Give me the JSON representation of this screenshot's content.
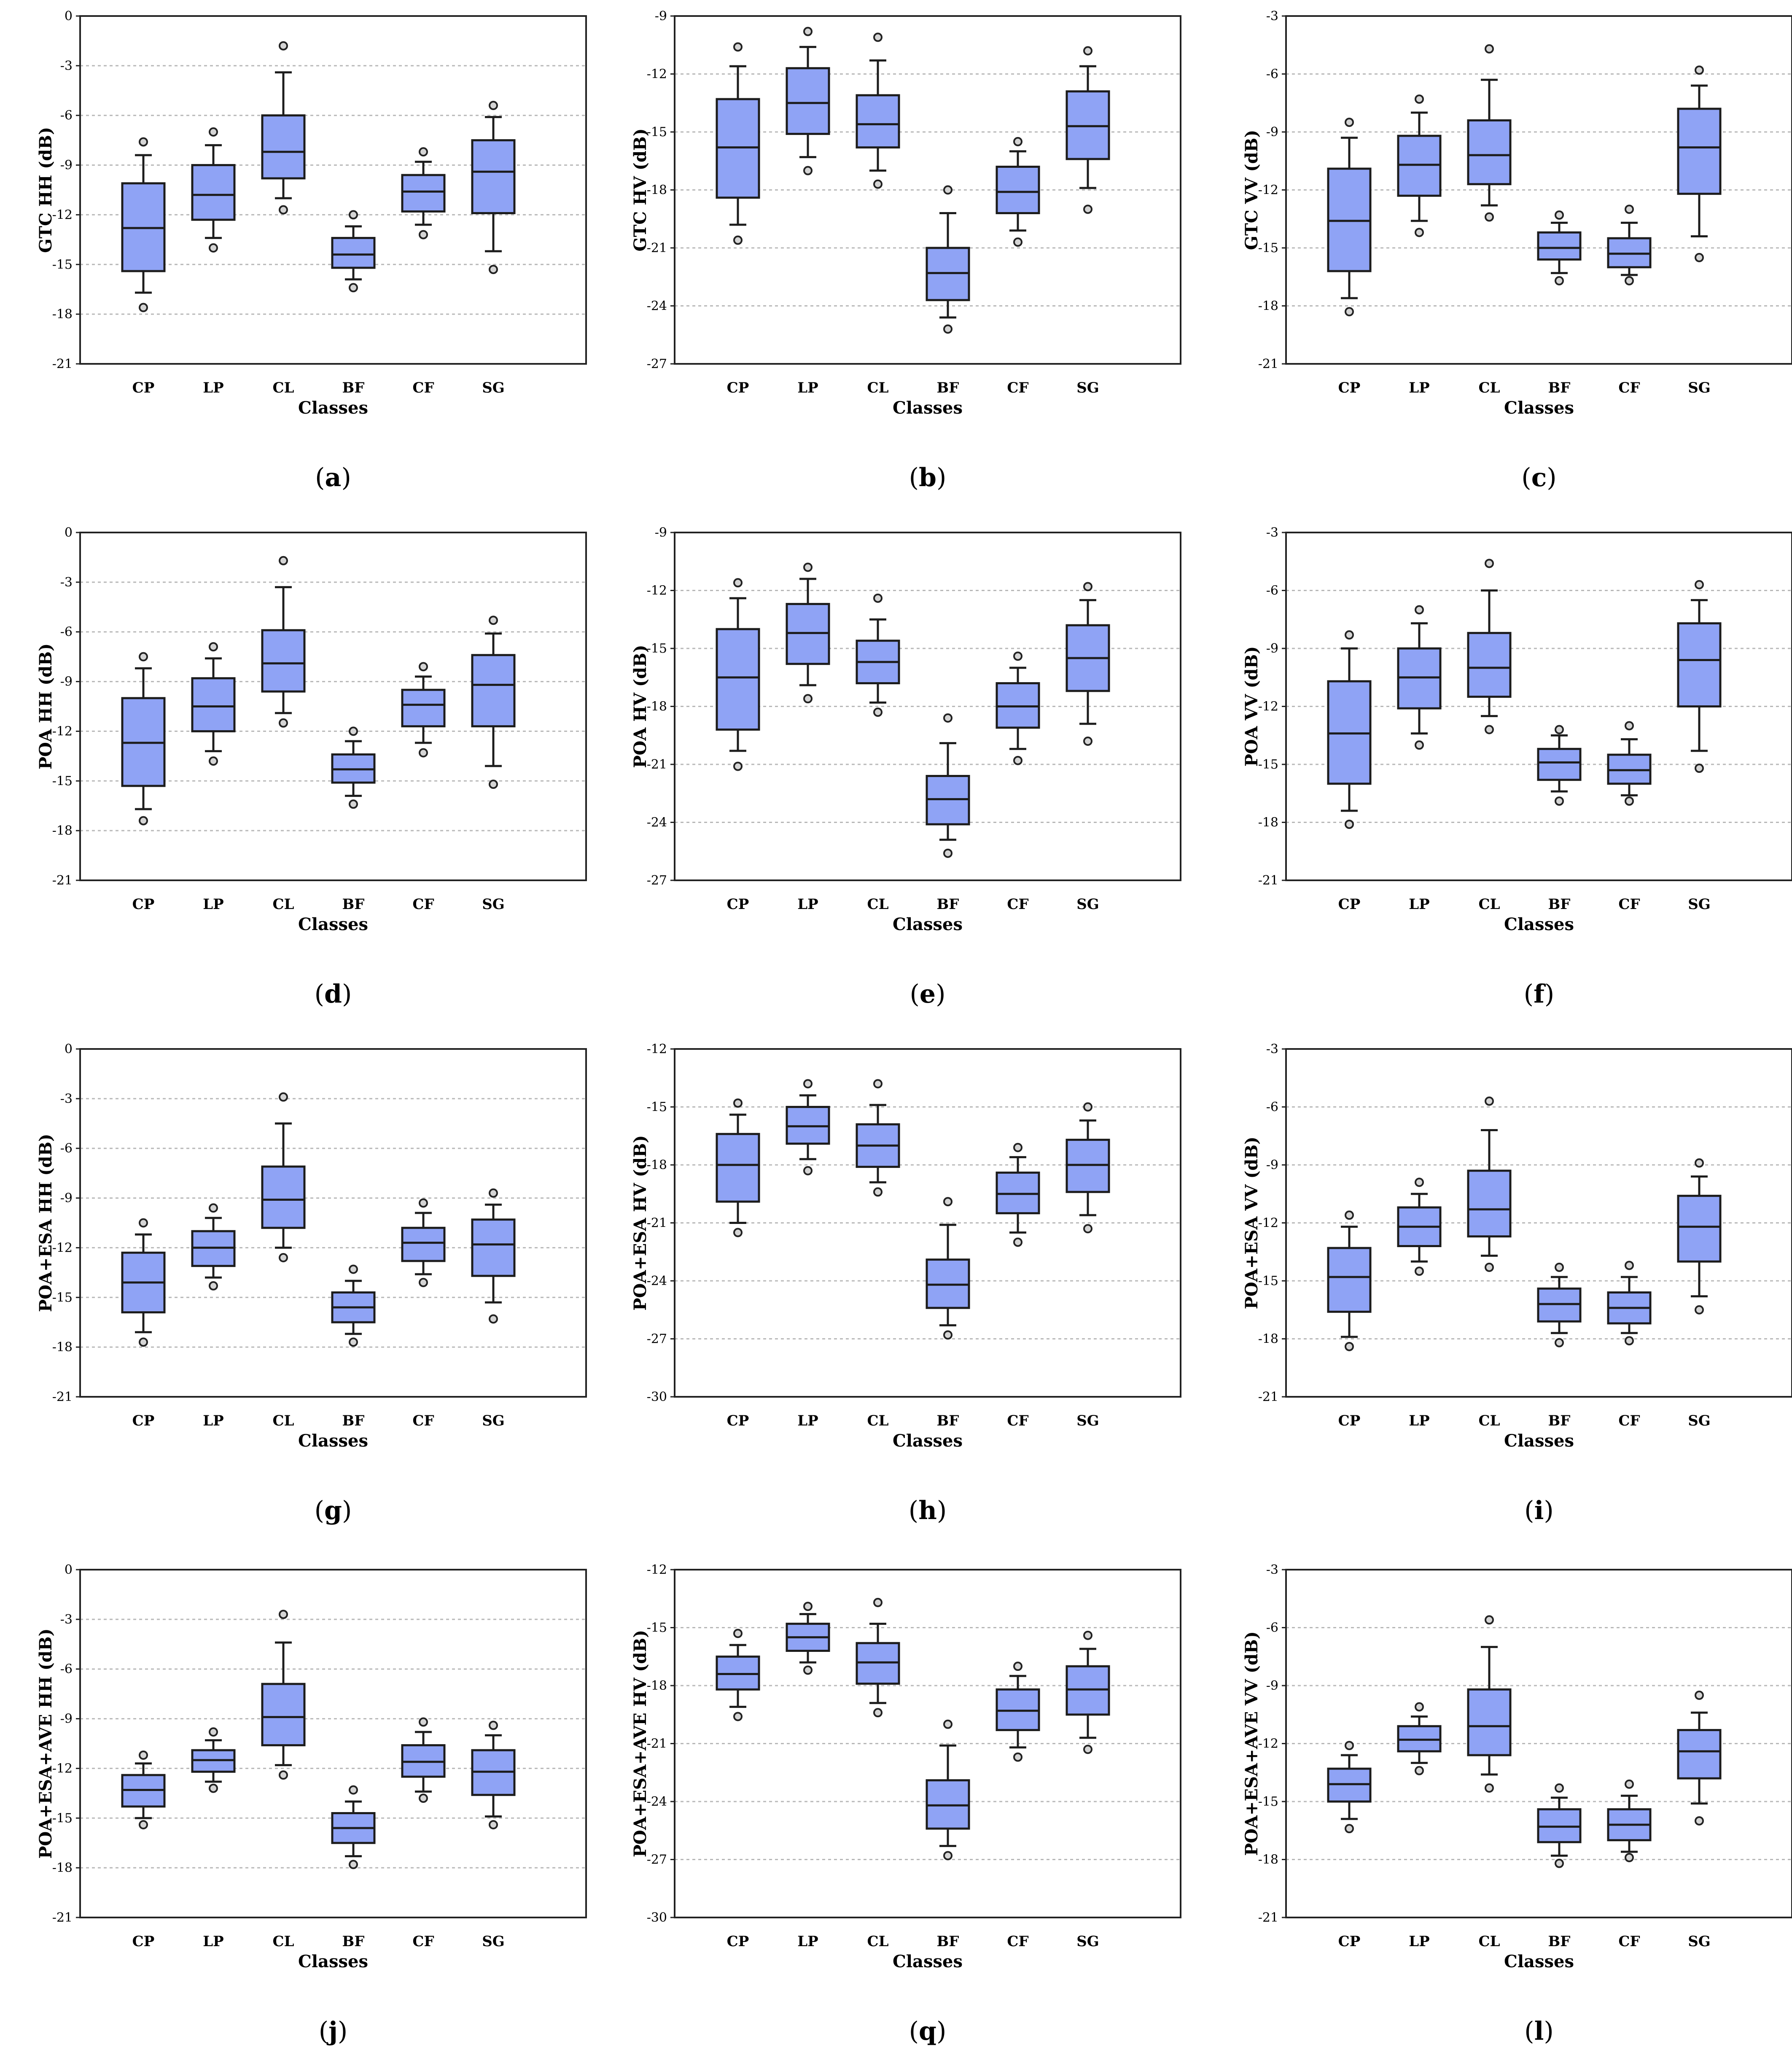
{
  "chart_data": [
    {
      "panel": "a",
      "type": "box",
      "ylabel": "GTC HH (dB)",
      "xlabel": "Classes",
      "ylim": [
        -21,
        0
      ],
      "yticks": [
        0,
        -3,
        -6,
        -9,
        -12,
        -15,
        -18,
        -21
      ],
      "categories": [
        "CP",
        "LP",
        "CL",
        "BF",
        "CF",
        "SG"
      ],
      "boxes": [
        {
          "lo_out": -17.6,
          "lo_wh": -16.7,
          "q1": -15.4,
          "med": -12.8,
          "q3": -10.1,
          "hi_wh": -8.4,
          "hi_out": -7.6
        },
        {
          "lo_out": -14.0,
          "lo_wh": -13.4,
          "q1": -12.3,
          "med": -10.8,
          "q3": -9.0,
          "hi_wh": -7.8,
          "hi_out": -7.0
        },
        {
          "lo_out": -11.7,
          "lo_wh": -11.0,
          "q1": -9.8,
          "med": -8.2,
          "q3": -6.0,
          "hi_wh": -3.4,
          "hi_out": -1.8
        },
        {
          "lo_out": -16.4,
          "lo_wh": -15.9,
          "q1": -15.2,
          "med": -14.4,
          "q3": -13.4,
          "hi_wh": -12.7,
          "hi_out": -12.0
        },
        {
          "lo_out": -13.2,
          "lo_wh": -12.6,
          "q1": -11.8,
          "med": -10.6,
          "q3": -9.6,
          "hi_wh": -8.8,
          "hi_out": -8.2
        },
        {
          "lo_out": -15.3,
          "lo_wh": -14.2,
          "q1": -11.9,
          "med": -9.4,
          "q3": -7.5,
          "hi_wh": -6.1,
          "hi_out": -5.4
        }
      ]
    },
    {
      "panel": "b",
      "type": "box",
      "ylabel": "GTC HV (dB)",
      "xlabel": "Classes",
      "ylim": [
        -27,
        -9
      ],
      "yticks": [
        -9,
        -12,
        -15,
        -18,
        -21,
        -24,
        -27
      ],
      "categories": [
        "CP",
        "LP",
        "CL",
        "BF",
        "CF",
        "SG"
      ],
      "boxes": [
        {
          "lo_out": -20.6,
          "lo_wh": -19.8,
          "q1": -18.4,
          "med": -15.8,
          "q3": -13.3,
          "hi_wh": -11.6,
          "hi_out": -10.6
        },
        {
          "lo_out": -17.0,
          "lo_wh": -16.3,
          "q1": -15.1,
          "med": -13.5,
          "q3": -11.7,
          "hi_wh": -10.6,
          "hi_out": -9.8
        },
        {
          "lo_out": -17.7,
          "lo_wh": -17.0,
          "q1": -15.8,
          "med": -14.6,
          "q3": -13.1,
          "hi_wh": -11.3,
          "hi_out": -10.1
        },
        {
          "lo_out": -25.2,
          "lo_wh": -24.6,
          "q1": -23.7,
          "med": -22.3,
          "q3": -21.0,
          "hi_wh": -19.2,
          "hi_out": -18.0
        },
        {
          "lo_out": -20.7,
          "lo_wh": -20.1,
          "q1": -19.2,
          "med": -18.1,
          "q3": -16.8,
          "hi_wh": -16.0,
          "hi_out": -15.5
        },
        {
          "lo_out": -19.0,
          "lo_wh": -17.9,
          "q1": -16.4,
          "med": -14.7,
          "q3": -12.9,
          "hi_wh": -11.6,
          "hi_out": -10.8
        }
      ]
    },
    {
      "panel": "c",
      "type": "box",
      "ylabel": "GTC VV (dB)",
      "xlabel": "Classes",
      "ylim": [
        -21,
        -3
      ],
      "yticks": [
        -3,
        -6,
        -9,
        -12,
        -15,
        -18,
        -21
      ],
      "categories": [
        "CP",
        "LP",
        "CL",
        "BF",
        "CF",
        "SG"
      ],
      "boxes": [
        {
          "lo_out": -18.3,
          "lo_wh": -17.6,
          "q1": -16.2,
          "med": -13.6,
          "q3": -10.9,
          "hi_wh": -9.3,
          "hi_out": -8.5
        },
        {
          "lo_out": -14.2,
          "lo_wh": -13.6,
          "q1": -12.3,
          "med": -10.7,
          "q3": -9.2,
          "hi_wh": -8.0,
          "hi_out": -7.3
        },
        {
          "lo_out": -13.4,
          "lo_wh": -12.8,
          "q1": -11.7,
          "med": -10.2,
          "q3": -8.4,
          "hi_wh": -6.3,
          "hi_out": -4.7
        },
        {
          "lo_out": -16.7,
          "lo_wh": -16.3,
          "q1": -15.6,
          "med": -15.0,
          "q3": -14.2,
          "hi_wh": -13.7,
          "hi_out": -13.3
        },
        {
          "lo_out": -16.7,
          "lo_wh": -16.4,
          "q1": -16.0,
          "med": -15.3,
          "q3": -14.5,
          "hi_wh": -13.7,
          "hi_out": -13.0
        },
        {
          "lo_out": -15.5,
          "lo_wh": -14.4,
          "q1": -12.2,
          "med": -9.8,
          "q3": -7.8,
          "hi_wh": -6.6,
          "hi_out": -5.8
        }
      ]
    },
    {
      "panel": "d",
      "type": "box",
      "ylabel": "POA HH (dB)",
      "xlabel": "Classes",
      "ylim": [
        -21,
        0
      ],
      "yticks": [
        0,
        -3,
        -6,
        -9,
        -12,
        -15,
        -18,
        -21
      ],
      "categories": [
        "CP",
        "LP",
        "CL",
        "BF",
        "CF",
        "SG"
      ],
      "boxes": [
        {
          "lo_out": -17.4,
          "lo_wh": -16.7,
          "q1": -15.3,
          "med": -12.7,
          "q3": -10.0,
          "hi_wh": -8.2,
          "hi_out": -7.5
        },
        {
          "lo_out": -13.8,
          "lo_wh": -13.2,
          "q1": -12.0,
          "med": -10.5,
          "q3": -8.8,
          "hi_wh": -7.6,
          "hi_out": -6.9
        },
        {
          "lo_out": -11.5,
          "lo_wh": -10.9,
          "q1": -9.6,
          "med": -7.9,
          "q3": -5.9,
          "hi_wh": -3.3,
          "hi_out": -1.7
        },
        {
          "lo_out": -16.4,
          "lo_wh": -15.9,
          "q1": -15.1,
          "med": -14.3,
          "q3": -13.4,
          "hi_wh": -12.6,
          "hi_out": -12.0
        },
        {
          "lo_out": -13.3,
          "lo_wh": -12.7,
          "q1": -11.7,
          "med": -10.4,
          "q3": -9.5,
          "hi_wh": -8.7,
          "hi_out": -8.1
        },
        {
          "lo_out": -15.2,
          "lo_wh": -14.1,
          "q1": -11.7,
          "med": -9.2,
          "q3": -7.4,
          "hi_wh": -6.1,
          "hi_out": -5.3
        }
      ]
    },
    {
      "panel": "e",
      "type": "box",
      "ylabel": "POA HV (dB)",
      "xlabel": "Classes",
      "ylim": [
        -27,
        -9
      ],
      "yticks": [
        -9,
        -12,
        -15,
        -18,
        -21,
        -24,
        -27
      ],
      "categories": [
        "CP",
        "LP",
        "CL",
        "BF",
        "CF",
        "SG"
      ],
      "boxes": [
        {
          "lo_out": -21.1,
          "lo_wh": -20.3,
          "q1": -19.2,
          "med": -16.5,
          "q3": -14.0,
          "hi_wh": -12.4,
          "hi_out": -11.6
        },
        {
          "lo_out": -17.6,
          "lo_wh": -16.9,
          "q1": -15.8,
          "med": -14.2,
          "q3": -12.7,
          "hi_wh": -11.4,
          "hi_out": -10.8
        },
        {
          "lo_out": -18.3,
          "lo_wh": -17.8,
          "q1": -16.8,
          "med": -15.7,
          "q3": -14.6,
          "hi_wh": -13.5,
          "hi_out": -12.4
        },
        {
          "lo_out": -25.6,
          "lo_wh": -24.9,
          "q1": -24.1,
          "med": -22.8,
          "q3": -21.6,
          "hi_wh": -19.9,
          "hi_out": -18.6
        },
        {
          "lo_out": -20.8,
          "lo_wh": -20.2,
          "q1": -19.1,
          "med": -18.0,
          "q3": -16.8,
          "hi_wh": -16.0,
          "hi_out": -15.4
        },
        {
          "lo_out": -19.8,
          "lo_wh": -18.9,
          "q1": -17.2,
          "med": -15.5,
          "q3": -13.8,
          "hi_wh": -12.5,
          "hi_out": -11.8
        }
      ]
    },
    {
      "panel": "f",
      "type": "box",
      "ylabel": "POA VV (dB)",
      "xlabel": "Classes",
      "ylim": [
        -21,
        -3
      ],
      "yticks": [
        -3,
        -6,
        -9,
        -12,
        -15,
        -18,
        -21
      ],
      "categories": [
        "CP",
        "LP",
        "CL",
        "BF",
        "CF",
        "SG"
      ],
      "boxes": [
        {
          "lo_out": -18.1,
          "lo_wh": -17.4,
          "q1": -16.0,
          "med": -13.4,
          "q3": -10.7,
          "hi_wh": -9.0,
          "hi_out": -8.3
        },
        {
          "lo_out": -14.0,
          "lo_wh": -13.4,
          "q1": -12.1,
          "med": -10.5,
          "q3": -9.0,
          "hi_wh": -7.7,
          "hi_out": -7.0
        },
        {
          "lo_out": -13.2,
          "lo_wh": -12.5,
          "q1": -11.5,
          "med": -10.0,
          "q3": -8.2,
          "hi_wh": -6.0,
          "hi_out": -4.6
        },
        {
          "lo_out": -16.9,
          "lo_wh": -16.4,
          "q1": -15.8,
          "med": -14.9,
          "q3": -14.2,
          "hi_wh": -13.5,
          "hi_out": -13.2
        },
        {
          "lo_out": -16.9,
          "lo_wh": -16.6,
          "q1": -16.0,
          "med": -15.3,
          "q3": -14.5,
          "hi_wh": -13.7,
          "hi_out": -13.0
        },
        {
          "lo_out": -15.2,
          "lo_wh": -14.3,
          "q1": -12.0,
          "med": -9.6,
          "q3": -7.7,
          "hi_wh": -6.5,
          "hi_out": -5.7
        }
      ]
    },
    {
      "panel": "g",
      "type": "box",
      "ylabel": "POA+ESA HH (dB)",
      "xlabel": "Classes",
      "ylim": [
        -21,
        0
      ],
      "yticks": [
        0,
        -3,
        -6,
        -9,
        -12,
        -15,
        -18,
        -21
      ],
      "categories": [
        "CP",
        "LP",
        "CL",
        "BF",
        "CF",
        "SG"
      ],
      "boxes": [
        {
          "lo_out": -17.7,
          "lo_wh": -17.1,
          "q1": -15.9,
          "med": -14.1,
          "q3": -12.3,
          "hi_wh": -11.2,
          "hi_out": -10.5
        },
        {
          "lo_out": -14.3,
          "lo_wh": -13.8,
          "q1": -13.1,
          "med": -12.0,
          "q3": -11.0,
          "hi_wh": -10.2,
          "hi_out": -9.6
        },
        {
          "lo_out": -12.6,
          "lo_wh": -12.0,
          "q1": -10.8,
          "med": -9.1,
          "q3": -7.1,
          "hi_wh": -4.5,
          "hi_out": -2.9
        },
        {
          "lo_out": -17.7,
          "lo_wh": -17.2,
          "q1": -16.5,
          "med": -15.6,
          "q3": -14.7,
          "hi_wh": -14.0,
          "hi_out": -13.3
        },
        {
          "lo_out": -14.1,
          "lo_wh": -13.6,
          "q1": -12.8,
          "med": -11.7,
          "q3": -10.8,
          "hi_wh": -9.9,
          "hi_out": -9.3
        },
        {
          "lo_out": -16.3,
          "lo_wh": -15.3,
          "q1": -13.7,
          "med": -11.8,
          "q3": -10.3,
          "hi_wh": -9.4,
          "hi_out": -8.7
        }
      ]
    },
    {
      "panel": "h",
      "type": "box",
      "ylabel": "POA+ESA HV (dB)",
      "xlabel": "Classes",
      "ylim": [
        -30,
        -12
      ],
      "yticks": [
        -12,
        -15,
        -18,
        -21,
        -24,
        -27,
        -30
      ],
      "categories": [
        "CP",
        "LP",
        "CL",
        "BF",
        "CF",
        "SG"
      ],
      "boxes": [
        {
          "lo_out": -21.5,
          "lo_wh": -21.0,
          "q1": -19.9,
          "med": -18.0,
          "q3": -16.4,
          "hi_wh": -15.4,
          "hi_out": -14.8
        },
        {
          "lo_out": -18.3,
          "lo_wh": -17.7,
          "q1": -16.9,
          "med": -16.0,
          "q3": -15.0,
          "hi_wh": -14.4,
          "hi_out": -13.8
        },
        {
          "lo_out": -19.4,
          "lo_wh": -18.9,
          "q1": -18.1,
          "med": -17.0,
          "q3": -15.9,
          "hi_wh": -14.9,
          "hi_out": -13.8
        },
        {
          "lo_out": -26.8,
          "lo_wh": -26.3,
          "q1": -25.4,
          "med": -24.2,
          "q3": -22.9,
          "hi_wh": -21.1,
          "hi_out": -19.9
        },
        {
          "lo_out": -22.0,
          "lo_wh": -21.5,
          "q1": -20.5,
          "med": -19.5,
          "q3": -18.4,
          "hi_wh": -17.6,
          "hi_out": -17.1
        },
        {
          "lo_out": -21.3,
          "lo_wh": -20.6,
          "q1": -19.4,
          "med": -18.0,
          "q3": -16.7,
          "hi_wh": -15.7,
          "hi_out": -15.0
        }
      ]
    },
    {
      "panel": "i",
      "type": "box",
      "ylabel": "POA+ESA VV (dB)",
      "xlabel": "Classes",
      "ylim": [
        -21,
        -3
      ],
      "yticks": [
        -3,
        -6,
        -9,
        -12,
        -15,
        -18,
        -21
      ],
      "categories": [
        "CP",
        "LP",
        "CL",
        "BF",
        "CF",
        "SG"
      ],
      "boxes": [
        {
          "lo_out": -18.4,
          "lo_wh": -17.9,
          "q1": -16.6,
          "med": -14.8,
          "q3": -13.3,
          "hi_wh": -12.2,
          "hi_out": -11.6
        },
        {
          "lo_out": -14.5,
          "lo_wh": -14.0,
          "q1": -13.2,
          "med": -12.2,
          "q3": -11.2,
          "hi_wh": -10.5,
          "hi_out": -9.9
        },
        {
          "lo_out": -14.3,
          "lo_wh": -13.7,
          "q1": -12.7,
          "med": -11.3,
          "q3": -9.3,
          "hi_wh": -7.2,
          "hi_out": -5.7
        },
        {
          "lo_out": -18.2,
          "lo_wh": -17.7,
          "q1": -17.1,
          "med": -16.2,
          "q3": -15.4,
          "hi_wh": -14.8,
          "hi_out": -14.3
        },
        {
          "lo_out": -18.1,
          "lo_wh": -17.7,
          "q1": -17.2,
          "med": -16.4,
          "q3": -15.6,
          "hi_wh": -14.8,
          "hi_out": -14.2
        },
        {
          "lo_out": -16.5,
          "lo_wh": -15.8,
          "q1": -14.0,
          "med": -12.2,
          "q3": -10.6,
          "hi_wh": -9.6,
          "hi_out": -8.9
        }
      ]
    },
    {
      "panel": "j",
      "type": "box",
      "ylabel": "POA+ESA+AVE HH (dB)",
      "xlabel": "Classes",
      "ylim": [
        -21,
        0
      ],
      "yticks": [
        0,
        -3,
        -6,
        -9,
        -12,
        -15,
        -18,
        -21
      ],
      "categories": [
        "CP",
        "LP",
        "CL",
        "BF",
        "CF",
        "SG"
      ],
      "boxes": [
        {
          "lo_out": -15.4,
          "lo_wh": -15.0,
          "q1": -14.3,
          "med": -13.3,
          "q3": -12.4,
          "hi_wh": -11.7,
          "hi_out": -11.2
        },
        {
          "lo_out": -13.2,
          "lo_wh": -12.8,
          "q1": -12.2,
          "med": -11.5,
          "q3": -10.9,
          "hi_wh": -10.3,
          "hi_out": -9.8
        },
        {
          "lo_out": -12.4,
          "lo_wh": -11.8,
          "q1": -10.6,
          "med": -8.9,
          "q3": -6.9,
          "hi_wh": -4.4,
          "hi_out": -2.7
        },
        {
          "lo_out": -17.8,
          "lo_wh": -17.3,
          "q1": -16.5,
          "med": -15.6,
          "q3": -14.7,
          "hi_wh": -14.0,
          "hi_out": -13.3
        },
        {
          "lo_out": -13.8,
          "lo_wh": -13.4,
          "q1": -12.5,
          "med": -11.6,
          "q3": -10.6,
          "hi_wh": -9.8,
          "hi_out": -9.2
        },
        {
          "lo_out": -15.4,
          "lo_wh": -14.9,
          "q1": -13.6,
          "med": -12.2,
          "q3": -10.9,
          "hi_wh": -10.0,
          "hi_out": -9.4
        }
      ]
    },
    {
      "panel": "q",
      "type": "box",
      "ylabel": "POA+ESA+AVE HV (dB)",
      "xlabel": "Classes",
      "ylim": [
        -30,
        -12
      ],
      "yticks": [
        -12,
        -15,
        -18,
        -21,
        -24,
        -27,
        -30
      ],
      "categories": [
        "CP",
        "LP",
        "CL",
        "BF",
        "CF",
        "SG"
      ],
      "boxes": [
        {
          "lo_out": -19.6,
          "lo_wh": -19.1,
          "q1": -18.2,
          "med": -17.4,
          "q3": -16.5,
          "hi_wh": -15.9,
          "hi_out": -15.3
        },
        {
          "lo_out": -17.2,
          "lo_wh": -16.8,
          "q1": -16.2,
          "med": -15.5,
          "q3": -14.8,
          "hi_wh": -14.3,
          "hi_out": -13.9
        },
        {
          "lo_out": -19.4,
          "lo_wh": -18.9,
          "q1": -17.9,
          "med": -16.8,
          "q3": -15.8,
          "hi_wh": -14.8,
          "hi_out": -13.7
        },
        {
          "lo_out": -26.8,
          "lo_wh": -26.3,
          "q1": -25.4,
          "med": -24.2,
          "q3": -22.9,
          "hi_wh": -21.1,
          "hi_out": -20.0
        },
        {
          "lo_out": -21.7,
          "lo_wh": -21.2,
          "q1": -20.3,
          "med": -19.3,
          "q3": -18.2,
          "hi_wh": -17.5,
          "hi_out": -17.0
        },
        {
          "lo_out": -21.3,
          "lo_wh": -20.7,
          "q1": -19.5,
          "med": -18.2,
          "q3": -17.0,
          "hi_wh": -16.1,
          "hi_out": -15.4
        }
      ]
    },
    {
      "panel": "l",
      "type": "box",
      "ylabel": "POA+ESA+AVE VV (dB)",
      "xlabel": "Classes",
      "ylim": [
        -21,
        -3
      ],
      "yticks": [
        -3,
        -6,
        -9,
        -12,
        -15,
        -18,
        -21
      ],
      "categories": [
        "CP",
        "LP",
        "CL",
        "BF",
        "CF",
        "SG"
      ],
      "boxes": [
        {
          "lo_out": -16.4,
          "lo_wh": -15.9,
          "q1": -15.0,
          "med": -14.1,
          "q3": -13.3,
          "hi_wh": -12.6,
          "hi_out": -12.1
        },
        {
          "lo_out": -13.4,
          "lo_wh": -13.0,
          "q1": -12.4,
          "med": -11.8,
          "q3": -11.1,
          "hi_wh": -10.6,
          "hi_out": -10.1
        },
        {
          "lo_out": -14.3,
          "lo_wh": -13.6,
          "q1": -12.6,
          "med": -11.1,
          "q3": -9.2,
          "hi_wh": -7.0,
          "hi_out": -5.6
        },
        {
          "lo_out": -18.2,
          "lo_wh": -17.8,
          "q1": -17.1,
          "med": -16.3,
          "q3": -15.4,
          "hi_wh": -14.8,
          "hi_out": -14.3
        },
        {
          "lo_out": -17.9,
          "lo_wh": -17.6,
          "q1": -17.0,
          "med": -16.2,
          "q3": -15.4,
          "hi_wh": -14.7,
          "hi_out": -14.1
        },
        {
          "lo_out": -16.0,
          "lo_wh": -15.1,
          "q1": -13.8,
          "med": -12.4,
          "q3": -11.3,
          "hi_wh": -10.4,
          "hi_out": -9.5
        }
      ]
    }
  ]
}
